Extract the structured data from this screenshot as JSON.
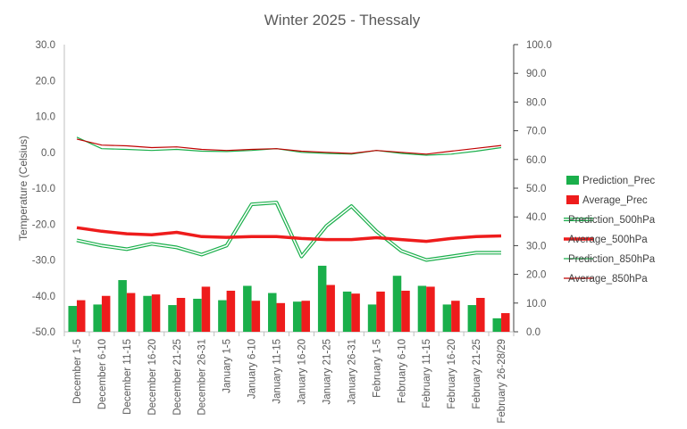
{
  "chart_data": {
    "type": "bar+line",
    "title": "Winter 2025 - Thessaly",
    "ylabel": "Temperature (Celsius)",
    "y2label": "",
    "ylim": [
      -50,
      30
    ],
    "y2lim": [
      0,
      100
    ],
    "y_ticks": [
      "30.0",
      "20.0",
      "10.0",
      "0.0",
      "-10.0",
      "-20.0",
      "-30.0",
      "-40.0",
      "-50.0"
    ],
    "y2_ticks": [
      "100.0",
      "90.0",
      "80.0",
      "70.0",
      "60.0",
      "50.0",
      "40.0",
      "30.0",
      "20.0",
      "10.0",
      "0.0"
    ],
    "grid": false,
    "legend_position": "right",
    "categories": [
      "December 1-5",
      "December 6-10",
      "December 11-15",
      "December 16-20",
      "December 21-25",
      "December 26-31",
      "January 1-5",
      "January 6-10",
      "January 11-15",
      "January 16-20",
      "January 21-25",
      "January 26-31",
      "February 1-5",
      "February 6-10",
      "February 11-15",
      "February 16-20",
      "February 21-25",
      "February 26-28/29"
    ],
    "series": [
      {
        "name": "Prediction_Prec",
        "type": "bar",
        "axis": "y2",
        "color": "#1aaf4b",
        "values": [
          9,
          9.5,
          18,
          12.5,
          9.3,
          11.5,
          11,
          16,
          13.5,
          10.5,
          23,
          14,
          9.5,
          19.5,
          16,
          9.5,
          9.3,
          4.7
        ]
      },
      {
        "name": "Average_Prec",
        "type": "bar",
        "axis": "y2",
        "color": "#ee1c1c",
        "values": [
          11,
          12.5,
          13.5,
          13,
          11.8,
          15.7,
          14.3,
          10.8,
          10,
          10.8,
          16.3,
          13.3,
          14,
          14.3,
          15.7,
          10.8,
          11.8,
          6.5
        ]
      },
      {
        "name": "Prediction_500hPa",
        "type": "line",
        "axis": "y1",
        "color": "#1aaf4b",
        "style": "double",
        "values": [
          -24.5,
          -26,
          -27,
          -25.5,
          -26.5,
          -28.5,
          -26,
          -14.5,
          -14,
          -29,
          -20.5,
          -15,
          -22,
          -27.5,
          -30,
          -29,
          -28,
          -28
        ]
      },
      {
        "name": "Average_500hPa",
        "type": "line",
        "axis": "y1",
        "color": "#ee1c1c",
        "style": "thick",
        "values": [
          -21,
          -22,
          -22.7,
          -23,
          -22.3,
          -23.5,
          -23.7,
          -23.5,
          -23.5,
          -24,
          -24.3,
          -24.3,
          -23.8,
          -24.3,
          -24.8,
          -24,
          -23.5,
          -23.3
        ]
      },
      {
        "name": "Prediction_850hPa",
        "type": "line",
        "axis": "y1",
        "color": "#1aaf4b",
        "style": "thin",
        "values": [
          4.2,
          1,
          0.8,
          0.5,
          0.8,
          0.3,
          0.2,
          0.5,
          1,
          0,
          -0.3,
          -0.5,
          0.5,
          -0.3,
          -0.8,
          -0.5,
          0.3,
          1.3
        ]
      },
      {
        "name": "Average_850hPa",
        "type": "line",
        "axis": "y1",
        "color": "#c00000",
        "style": "thin",
        "values": [
          3.7,
          2,
          1.8,
          1.3,
          1.5,
          0.8,
          0.5,
          0.8,
          1,
          0.3,
          0,
          -0.3,
          0.5,
          0,
          -0.5,
          0.3,
          1.1,
          1.9
        ]
      }
    ]
  }
}
